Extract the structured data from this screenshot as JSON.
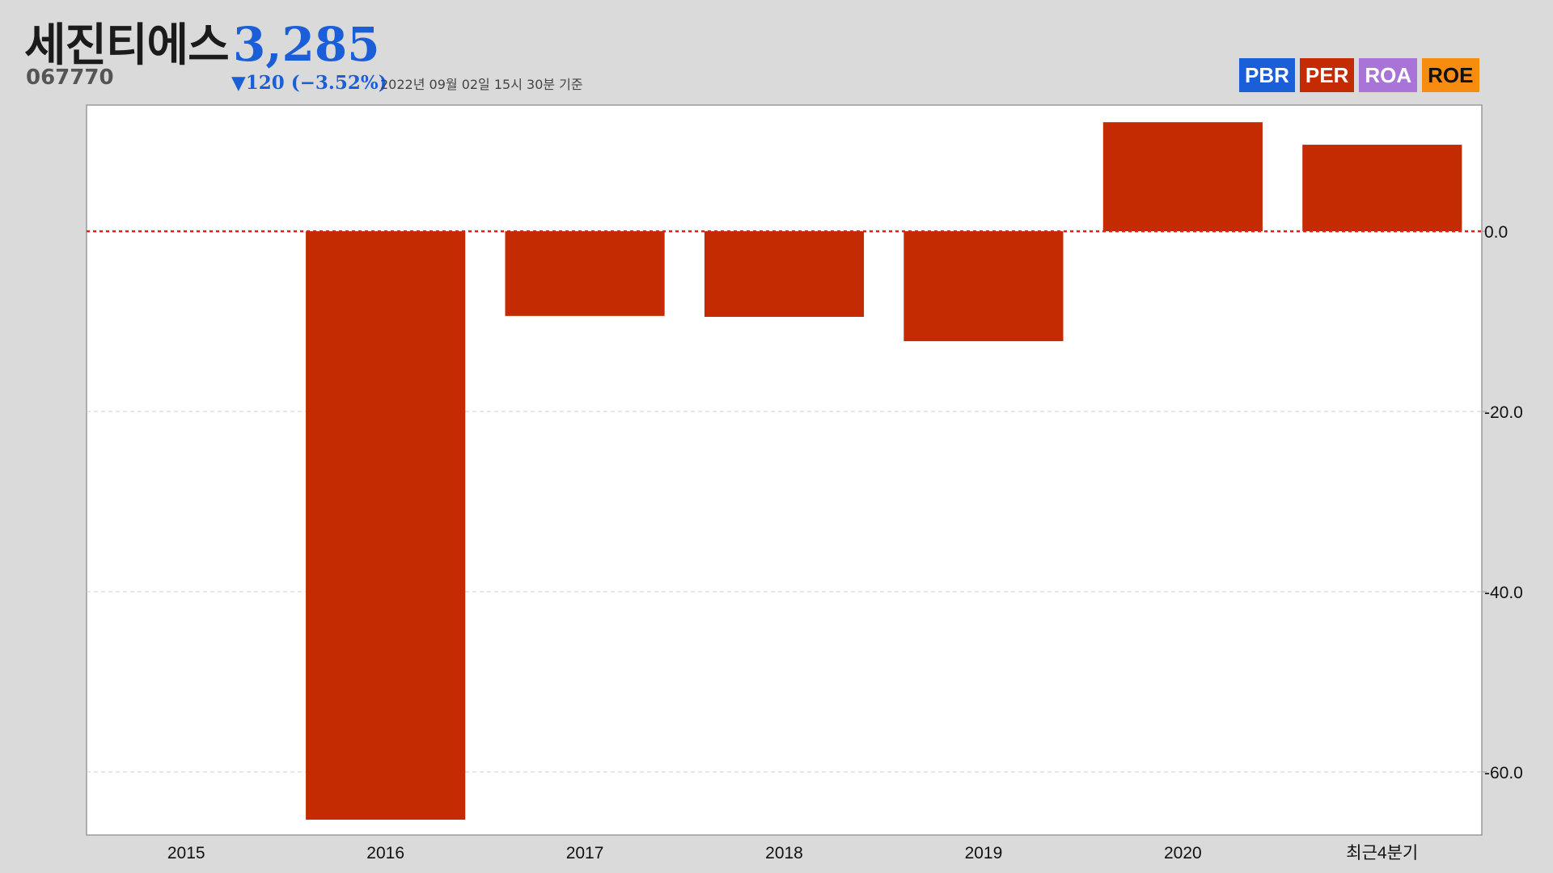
{
  "header": {
    "name": "세진티에스",
    "code": "067770",
    "price": "3,285",
    "change": "▼120 (−3.52%)",
    "timestamp": "2022년 09월 02일 15시 30분 기준"
  },
  "tabs": [
    {
      "label": "PBR",
      "color": "#1a5fd8"
    },
    {
      "label": "PER",
      "color": "#c42b02"
    },
    {
      "label": "ROA",
      "color": "#a874d8"
    },
    {
      "label": "ROE",
      "color": "#f78c10"
    }
  ],
  "colors": {
    "price": "#1a5fd8",
    "bar": "#c42b02",
    "zero_line": "#e0201a",
    "grid": "#cfcfcf",
    "background": "#dadada"
  },
  "chart_data": {
    "type": "bar",
    "categories": [
      "2015",
      "2016",
      "2017",
      "2018",
      "2019",
      "2020",
      "최근4분기"
    ],
    "values": [
      null,
      -65.3,
      -9.4,
      -9.5,
      -12.2,
      12.1,
      9.6
    ],
    "yticks": [
      0,
      -20,
      -40,
      -60
    ],
    "ytick_labels": [
      "0.0",
      "-20.0",
      "-40.0",
      "-60.0"
    ],
    "ylim": [
      -67,
      14
    ],
    "axis_side": "right",
    "grid": true,
    "title": "",
    "xlabel": "",
    "ylabel": ""
  }
}
